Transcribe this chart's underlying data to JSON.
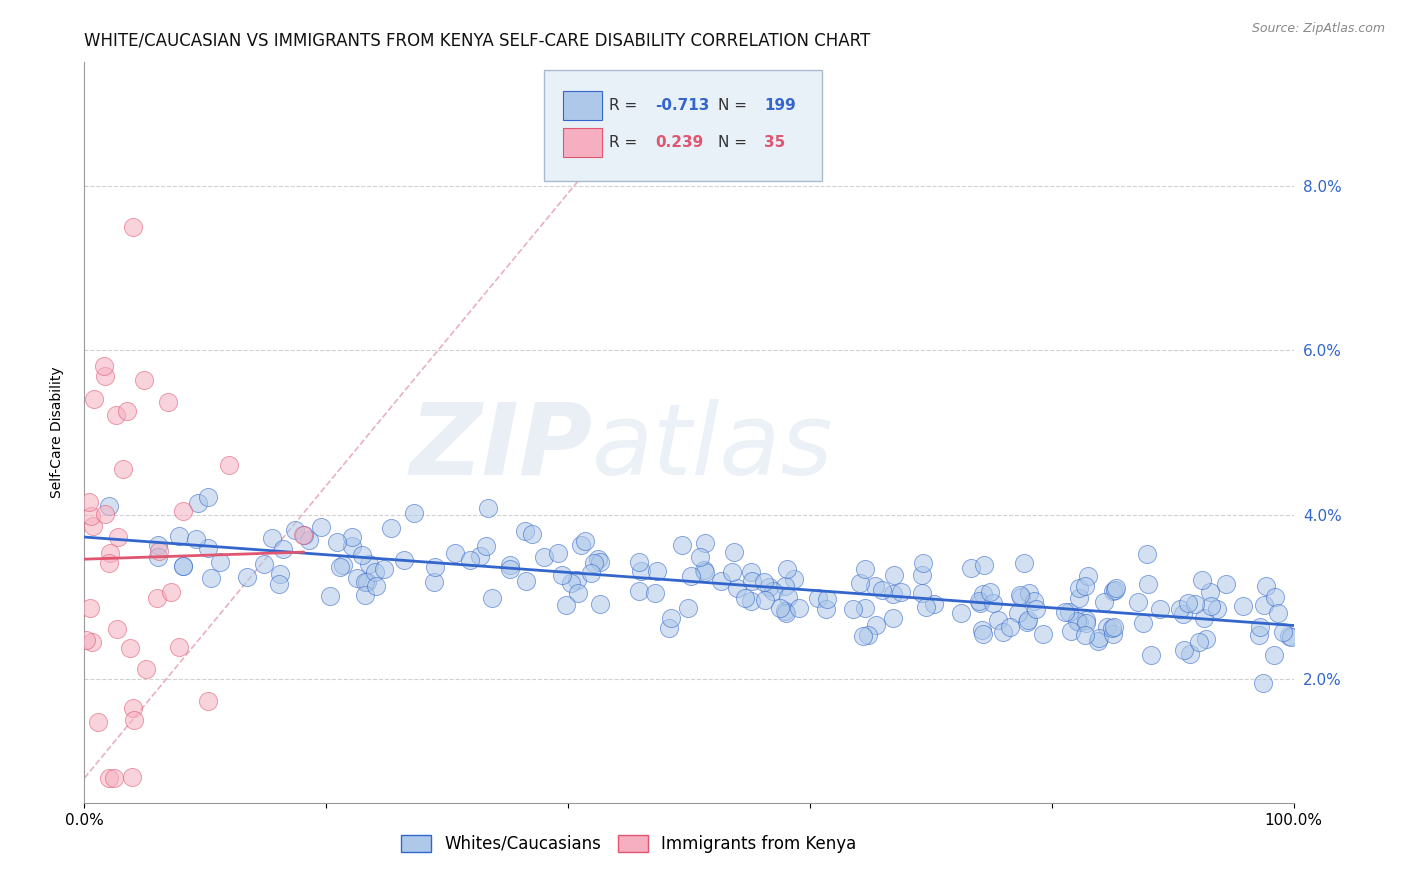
{
  "title": "WHITE/CAUCASIAN VS IMMIGRANTS FROM KENYA SELF-CARE DISABILITY CORRELATION CHART",
  "source_text": "Source: ZipAtlas.com",
  "ylabel": "Self-Care Disability",
  "xlim": [
    0.0,
    1.0
  ],
  "ylim": [
    0.005,
    0.095
  ],
  "xticks": [
    0.0,
    0.2,
    0.4,
    0.6,
    0.8,
    1.0
  ],
  "xtick_labels": [
    "0.0%",
    "",
    "",
    "",
    "",
    "100.0%"
  ],
  "yticks": [
    0.02,
    0.04,
    0.06,
    0.08
  ],
  "ytick_labels": [
    "2.0%",
    "4.0%",
    "6.0%",
    "8.0%"
  ],
  "blue_R": -0.713,
  "blue_N": 199,
  "pink_R": 0.239,
  "pink_N": 35,
  "blue_color": "#adc8e8",
  "pink_color": "#f5afc0",
  "blue_line_color": "#3366cc",
  "pink_line_color": "#e05570",
  "grid_color": "#cccccc",
  "legend_box_facecolor": "#e8f0f8",
  "legend_box_edgecolor": "#aabbcc",
  "title_fontsize": 12,
  "axis_label_fontsize": 10,
  "tick_fontsize": 11,
  "legend_fontsize": 12,
  "watermark_zip_color": "#d0dde8",
  "watermark_atlas_color": "#c8d8e8"
}
